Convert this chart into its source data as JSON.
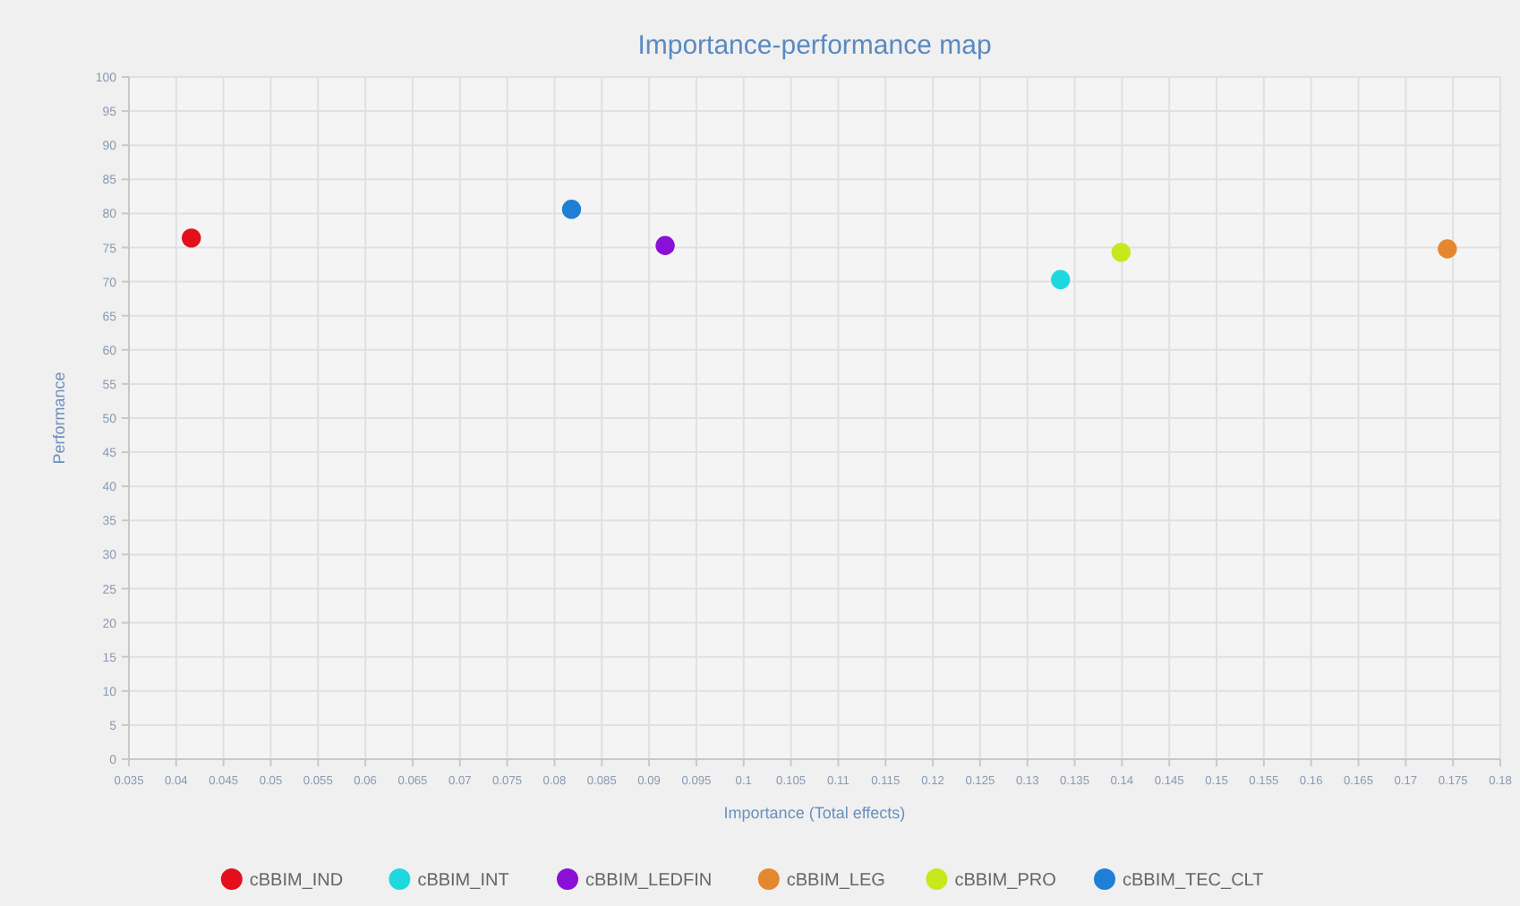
{
  "chart_data": {
    "type": "scatter",
    "title": "Importance-performance map",
    "xlabel": "Importance (Total effects)",
    "ylabel": "Performance",
    "xlim": [
      0.035,
      0.18
    ],
    "xticks": [
      0.035,
      0.04,
      0.045,
      0.05,
      0.055,
      0.06,
      0.065,
      0.07,
      0.075,
      0.08,
      0.085,
      0.09,
      0.095,
      0.1,
      0.105,
      0.11,
      0.115,
      0.12,
      0.125,
      0.13,
      0.135,
      0.14,
      0.145,
      0.15,
      0.155,
      0.16,
      0.165,
      0.17,
      0.175,
      0.18
    ],
    "ylim": [
      0,
      100
    ],
    "yticks": [
      0,
      5,
      10,
      15,
      20,
      25,
      30,
      35,
      40,
      45,
      50,
      55,
      60,
      65,
      70,
      75,
      80,
      85,
      90,
      95,
      100
    ],
    "grid": true,
    "legend": "bottom",
    "marker": "circle",
    "series": [
      {
        "name": "cBBIM_IND",
        "color": "#e3101c",
        "x": [
          0.0416
        ],
        "values": [
          76.4
        ]
      },
      {
        "name": "cBBIM_INT",
        "color": "#1ed8e0",
        "x": [
          0.1335
        ],
        "values": [
          70.3
        ]
      },
      {
        "name": "cBBIM_LEDFIN",
        "color": "#8a10d8",
        "x": [
          0.0917
        ],
        "values": [
          75.3
        ]
      },
      {
        "name": "cBBIM_LEG",
        "color": "#e5872e",
        "x": [
          0.1744
        ],
        "values": [
          74.8
        ]
      },
      {
        "name": "cBBIM_PRO",
        "color": "#c8e81e",
        "x": [
          0.1399
        ],
        "values": [
          74.3
        ]
      },
      {
        "name": "cBBIM_TEC_CLT",
        "color": "#1f7fd6",
        "x": [
          0.0818
        ],
        "values": [
          80.6
        ]
      }
    ]
  }
}
